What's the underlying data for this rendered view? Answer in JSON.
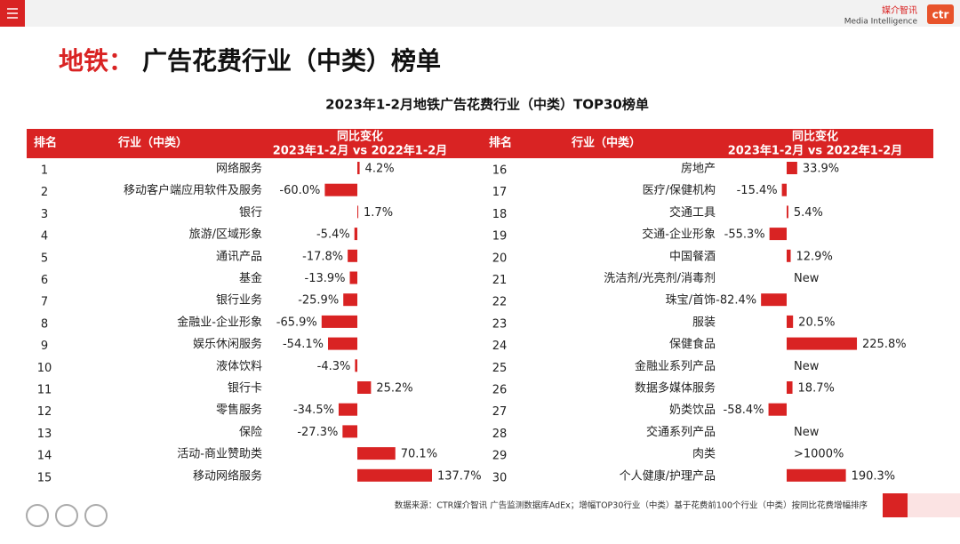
{
  "brand": {
    "cn": "媒介智讯",
    "en": "Media Intelligence",
    "logo": "ctr"
  },
  "title_prefix": "地铁：",
  "title": "广告花费行业（中类）榜单",
  "table": {
    "title": "2023年1-2月地铁广告花费行业（中类）TOP30榜单",
    "columns": [
      "排名",
      "行业（中类）",
      "同比变化",
      "2023年1-2月 vs 2022年1-2月"
    ],
    "bar_color": "#d92323",
    "left_xlim": [
      -70,
      140
    ],
    "right_xlim": [
      -90,
      230
    ],
    "left": [
      {
        "rank": 1,
        "industry": "网络服务",
        "value": 4.2,
        "label": "4.2%"
      },
      {
        "rank": 2,
        "industry": "移动客户端应用软件及服务",
        "value": -60.0,
        "label": "-60.0%"
      },
      {
        "rank": 3,
        "industry": "银行",
        "value": 1.7,
        "label": "1.7%"
      },
      {
        "rank": 4,
        "industry": "旅游/区域形象",
        "value": -5.4,
        "label": "-5.4%"
      },
      {
        "rank": 5,
        "industry": "通讯产品",
        "value": -17.8,
        "label": "-17.8%"
      },
      {
        "rank": 6,
        "industry": "基金",
        "value": -13.9,
        "label": "-13.9%"
      },
      {
        "rank": 7,
        "industry": "银行业务",
        "value": -25.9,
        "label": "-25.9%"
      },
      {
        "rank": 8,
        "industry": "金融业-企业形象",
        "value": -65.9,
        "label": "-65.9%"
      },
      {
        "rank": 9,
        "industry": "娱乐休闲服务",
        "value": -54.1,
        "label": "-54.1%"
      },
      {
        "rank": 10,
        "industry": "液体饮料",
        "value": -4.3,
        "label": "-4.3%"
      },
      {
        "rank": 11,
        "industry": "银行卡",
        "value": 25.2,
        "label": "25.2%"
      },
      {
        "rank": 12,
        "industry": "零售服务",
        "value": -34.5,
        "label": "-34.5%"
      },
      {
        "rank": 13,
        "industry": "保险",
        "value": -27.3,
        "label": "-27.3%"
      },
      {
        "rank": 14,
        "industry": "活动-商业赞助类",
        "value": 70.1,
        "label": "70.1%"
      },
      {
        "rank": 15,
        "industry": "移动网络服务",
        "value": 137.7,
        "label": "137.7%"
      }
    ],
    "right": [
      {
        "rank": 16,
        "industry": "房地产",
        "value": 33.9,
        "label": "33.9%"
      },
      {
        "rank": 17,
        "industry": "医疗/保健机构",
        "value": -15.4,
        "label": "-15.4%"
      },
      {
        "rank": 18,
        "industry": "交通工具",
        "value": 5.4,
        "label": "5.4%"
      },
      {
        "rank": 19,
        "industry": "交通-企业形象",
        "value": -55.3,
        "label": "-55.3%"
      },
      {
        "rank": 20,
        "industry": "中国餐酒",
        "value": 12.9,
        "label": "12.9%"
      },
      {
        "rank": 21,
        "industry": "洗洁剂/光亮剂/消毒剂",
        "value": null,
        "label": "New"
      },
      {
        "rank": 22,
        "industry": "珠宝/首饰",
        "value": -82.4,
        "label": "-82.4%"
      },
      {
        "rank": 23,
        "industry": "服装",
        "value": 20.5,
        "label": "20.5%"
      },
      {
        "rank": 24,
        "industry": "保健食品",
        "value": 225.8,
        "label": "225.8%"
      },
      {
        "rank": 25,
        "industry": "金融业系列产品",
        "value": null,
        "label": "New"
      },
      {
        "rank": 26,
        "industry": "数据多媒体服务",
        "value": 18.7,
        "label": "18.7%"
      },
      {
        "rank": 27,
        "industry": "奶类饮品",
        "value": -58.4,
        "label": "-58.4%"
      },
      {
        "rank": 28,
        "industry": "交通系列产品",
        "value": null,
        "label": "New"
      },
      {
        "rank": 29,
        "industry": "肉类",
        "value": null,
        "label": ">1000%"
      },
      {
        "rank": 30,
        "industry": "个人健康/护理产品",
        "value": 190.3,
        "label": "190.3%"
      }
    ]
  },
  "footer": "数据来源：CTR媒介智讯 广告监测数据库AdEx；增幅TOP30行业（中类）基于花费前100个行业（中类）按同比花费增幅排序"
}
